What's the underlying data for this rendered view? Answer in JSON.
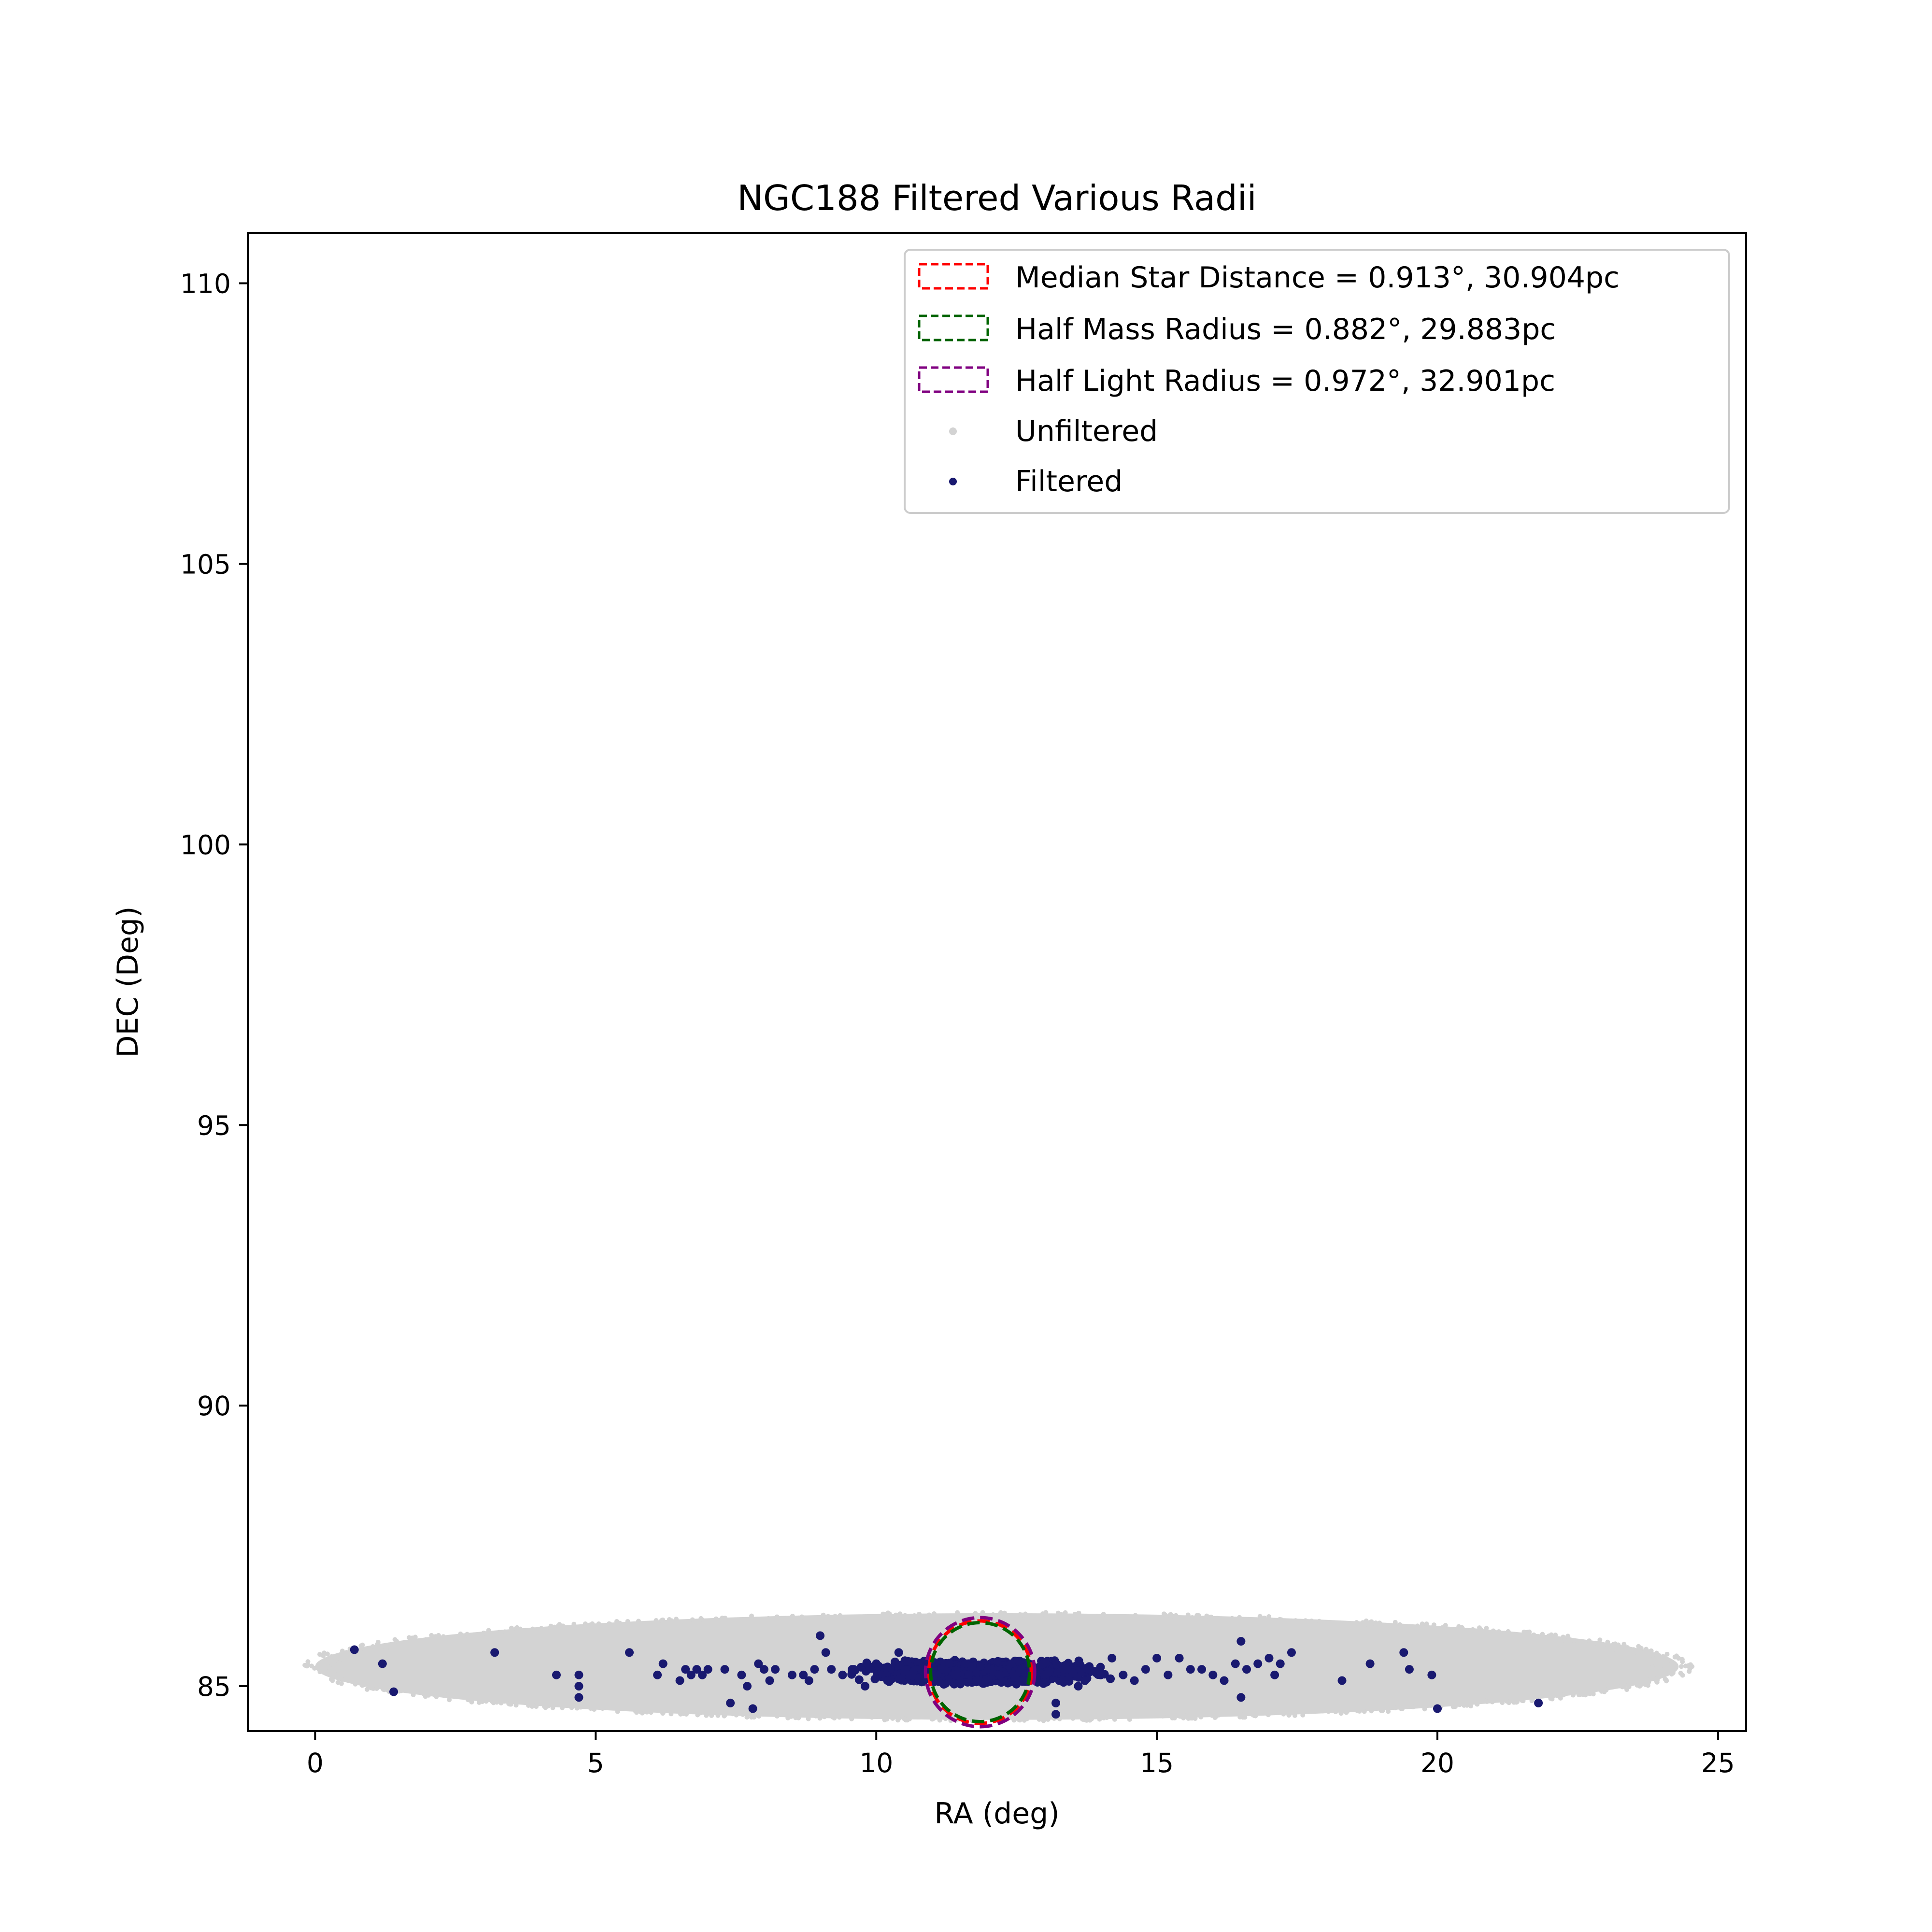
{
  "chart_data": {
    "type": "scatter",
    "title": "NGC188 Filtered Various Radii",
    "xlabel": "RA (deg)",
    "ylabel": "DEC (Deg)",
    "xlim": [
      -1.2,
      25.5
    ],
    "ylim": [
      84.2,
      110.9
    ],
    "xticks": [
      0,
      5,
      10,
      15,
      20,
      25
    ],
    "yticks": [
      85,
      90,
      95,
      100,
      105,
      110
    ],
    "grid": false,
    "legend_position": "upper-right",
    "colors": {
      "unfiltered": "#d3d3d3",
      "filtered": "#191970",
      "median_circle": "#ff0000",
      "half_mass_circle": "#006400",
      "half_light_circle": "#800080"
    },
    "unfiltered_region": {
      "center": [
        12.15,
        85.35
      ],
      "ra_half_width": 12.15,
      "dec_half_height": 0.95
    },
    "circles": [
      {
        "name": "Median Star Distance = 0.913°, 30.904pc",
        "center": [
          11.85,
          85.25
        ],
        "radius_deg": 0.913,
        "color": "#ff0000"
      },
      {
        "name": "Half Mass Radius = 0.882°, 29.883pc",
        "center": [
          11.85,
          85.25
        ],
        "radius_deg": 0.882,
        "color": "#006400"
      },
      {
        "name": "Half Light Radius = 0.972°, 32.901pc",
        "center": [
          11.85,
          85.25
        ],
        "radius_deg": 0.972,
        "color": "#800080"
      }
    ],
    "legend": [
      {
        "label": "Median Star Distance = 0.913°, 30.904pc",
        "kind": "circle",
        "color": "#ff0000"
      },
      {
        "label": "Half Mass Radius = 0.882°, 29.883pc",
        "kind": "circle",
        "color": "#006400"
      },
      {
        "label": "Half Light Radius = 0.972°, 32.901pc",
        "kind": "circle",
        "color": "#800080"
      },
      {
        "label": "Unfiltered",
        "kind": "point",
        "color": "#d3d3d3"
      },
      {
        "label": "Filtered",
        "kind": "point",
        "color": "#191970"
      }
    ],
    "series": [
      {
        "name": "Filtered",
        "points": [
          [
            0.7,
            85.65
          ],
          [
            1.2,
            85.4
          ],
          [
            1.4,
            84.9
          ],
          [
            3.2,
            85.6
          ],
          [
            4.3,
            85.2
          ],
          [
            4.7,
            84.8
          ],
          [
            4.7,
            85.2
          ],
          [
            4.7,
            85.0
          ],
          [
            5.6,
            85.6
          ],
          [
            6.1,
            85.2
          ],
          [
            6.2,
            85.4
          ],
          [
            6.5,
            85.1
          ],
          [
            6.6,
            85.3
          ],
          [
            6.7,
            85.2
          ],
          [
            6.8,
            85.3
          ],
          [
            6.9,
            85.2
          ],
          [
            7.0,
            85.3
          ],
          [
            7.3,
            85.3
          ],
          [
            7.4,
            84.7
          ],
          [
            7.6,
            85.2
          ],
          [
            7.7,
            85.0
          ],
          [
            7.8,
            84.6
          ],
          [
            7.9,
            85.4
          ],
          [
            8.0,
            85.3
          ],
          [
            8.1,
            85.1
          ],
          [
            8.2,
            85.3
          ],
          [
            8.5,
            85.2
          ],
          [
            8.7,
            85.2
          ],
          [
            8.8,
            85.1
          ],
          [
            8.9,
            85.3
          ],
          [
            9.0,
            85.9
          ],
          [
            9.1,
            85.6
          ],
          [
            9.2,
            85.3
          ],
          [
            9.4,
            85.2
          ],
          [
            9.6,
            85.3
          ],
          [
            9.8,
            85.0
          ],
          [
            10.0,
            85.4
          ],
          [
            10.2,
            85.1
          ],
          [
            10.4,
            85.6
          ],
          [
            10.6,
            85.2
          ],
          [
            10.8,
            85.3
          ],
          [
            11.0,
            85.1
          ],
          [
            11.2,
            85.3
          ],
          [
            11.4,
            85.2
          ],
          [
            11.6,
            85.4
          ],
          [
            11.8,
            85.1
          ],
          [
            12.0,
            85.3
          ],
          [
            12.2,
            85.2
          ],
          [
            12.4,
            85.4
          ],
          [
            12.6,
            85.1
          ],
          [
            12.8,
            85.3
          ],
          [
            13.0,
            85.2
          ],
          [
            13.2,
            84.7
          ],
          [
            13.2,
            84.5
          ],
          [
            13.4,
            85.3
          ],
          [
            13.6,
            85.0
          ],
          [
            13.8,
            85.3
          ],
          [
            14.0,
            85.2
          ],
          [
            14.2,
            85.5
          ],
          [
            14.4,
            85.2
          ],
          [
            14.6,
            85.1
          ],
          [
            14.8,
            85.3
          ],
          [
            15.0,
            85.5
          ],
          [
            15.2,
            85.2
          ],
          [
            15.4,
            85.5
          ],
          [
            15.6,
            85.3
          ],
          [
            15.8,
            85.3
          ],
          [
            16.0,
            85.2
          ],
          [
            16.2,
            85.1
          ],
          [
            16.4,
            85.4
          ],
          [
            16.5,
            85.8
          ],
          [
            16.5,
            84.8
          ],
          [
            16.6,
            85.3
          ],
          [
            16.8,
            85.4
          ],
          [
            17.0,
            85.5
          ],
          [
            17.1,
            85.2
          ],
          [
            17.2,
            85.4
          ],
          [
            17.4,
            85.6
          ],
          [
            18.3,
            85.1
          ],
          [
            18.8,
            85.4
          ],
          [
            19.4,
            85.6
          ],
          [
            19.5,
            85.3
          ],
          [
            19.9,
            85.2
          ],
          [
            20.0,
            84.6
          ],
          [
            21.8,
            84.7
          ]
        ]
      }
    ]
  }
}
